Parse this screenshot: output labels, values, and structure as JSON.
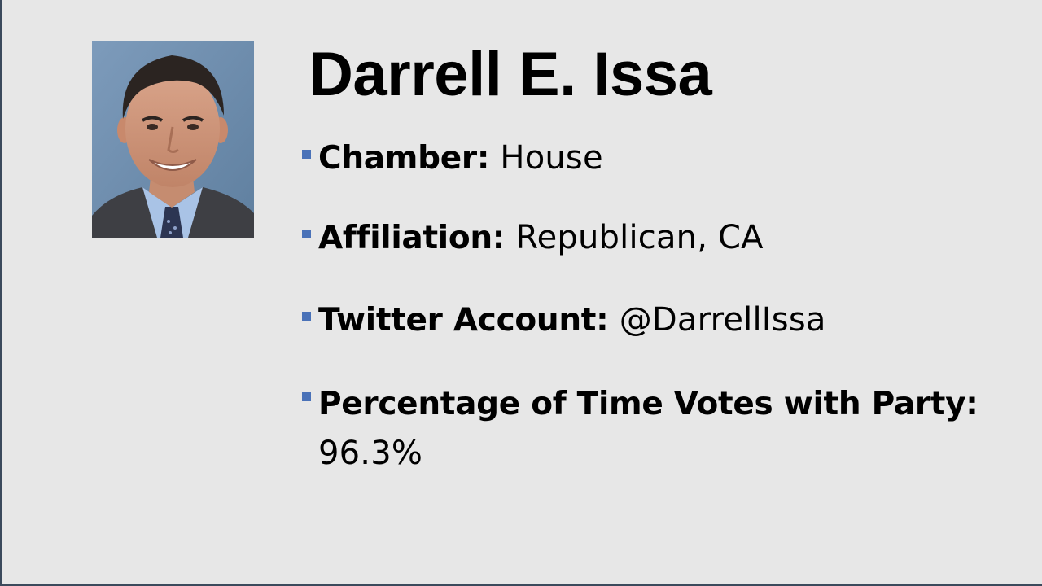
{
  "slide": {
    "title": "Darrell E. Issa",
    "bullets": [
      {
        "label": "Chamber:",
        "value": "House"
      },
      {
        "label": "Affiliation:",
        "value": "Republican, CA"
      },
      {
        "label": "Twitter Account:",
        "value": "@DarrellIssa"
      },
      {
        "label": "Percentage of Time Votes with Party:",
        "value": "96.3%"
      }
    ]
  },
  "colors": {
    "background": "#e7e7e7",
    "bullet_marker": "#4a72b8",
    "frame_edge": "#3b4a5c"
  }
}
